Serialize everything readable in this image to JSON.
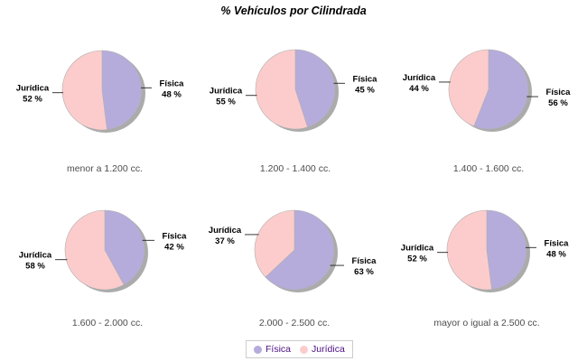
{
  "title": "% Vehículos por Cilindrada",
  "colors": {
    "fisica": "#B6ACDB",
    "juridica": "#FCCCCC",
    "shadow": "#9C9C9C",
    "slice_outline": "#AFAFAF",
    "leader_line": "#222222",
    "label_text": "#000000",
    "caption_text": "#4D4D4D",
    "legend_text": "#4B0F82",
    "legend_border": "#CCCCCC"
  },
  "chart_data": {
    "type": "pie",
    "title": "% Vehículos por Cilindrada",
    "legend": [
      "Física",
      "Jurídica"
    ],
    "legend_position": "bottom",
    "label_format": "name + percent",
    "charts": [
      {
        "caption": "menor a 1.200 cc.",
        "slices": [
          {
            "label": "Física",
            "pct": 48
          },
          {
            "label": "Jurídica",
            "pct": 52
          }
        ]
      },
      {
        "caption": "1.200 - 1.400 cc.",
        "slices": [
          {
            "label": "Física",
            "pct": 45
          },
          {
            "label": "Jurídica",
            "pct": 55
          }
        ]
      },
      {
        "caption": "1.400 - 1.600 cc.",
        "slices": [
          {
            "label": "Física",
            "pct": 56
          },
          {
            "label": "Jurídica",
            "pct": 44
          }
        ]
      },
      {
        "caption": "1.600 - 2.000 cc.",
        "slices": [
          {
            "label": "Física",
            "pct": 42
          },
          {
            "label": "Jurídica",
            "pct": 58
          }
        ]
      },
      {
        "caption": "2.000 - 2.500 cc.",
        "slices": [
          {
            "label": "Física",
            "pct": 63
          },
          {
            "label": "Jurídica",
            "pct": 37
          }
        ]
      },
      {
        "caption": "mayor o igual a 2.500 cc.",
        "slices": [
          {
            "label": "Física",
            "pct": 48
          },
          {
            "label": "Jurídica",
            "pct": 52
          }
        ]
      }
    ]
  }
}
